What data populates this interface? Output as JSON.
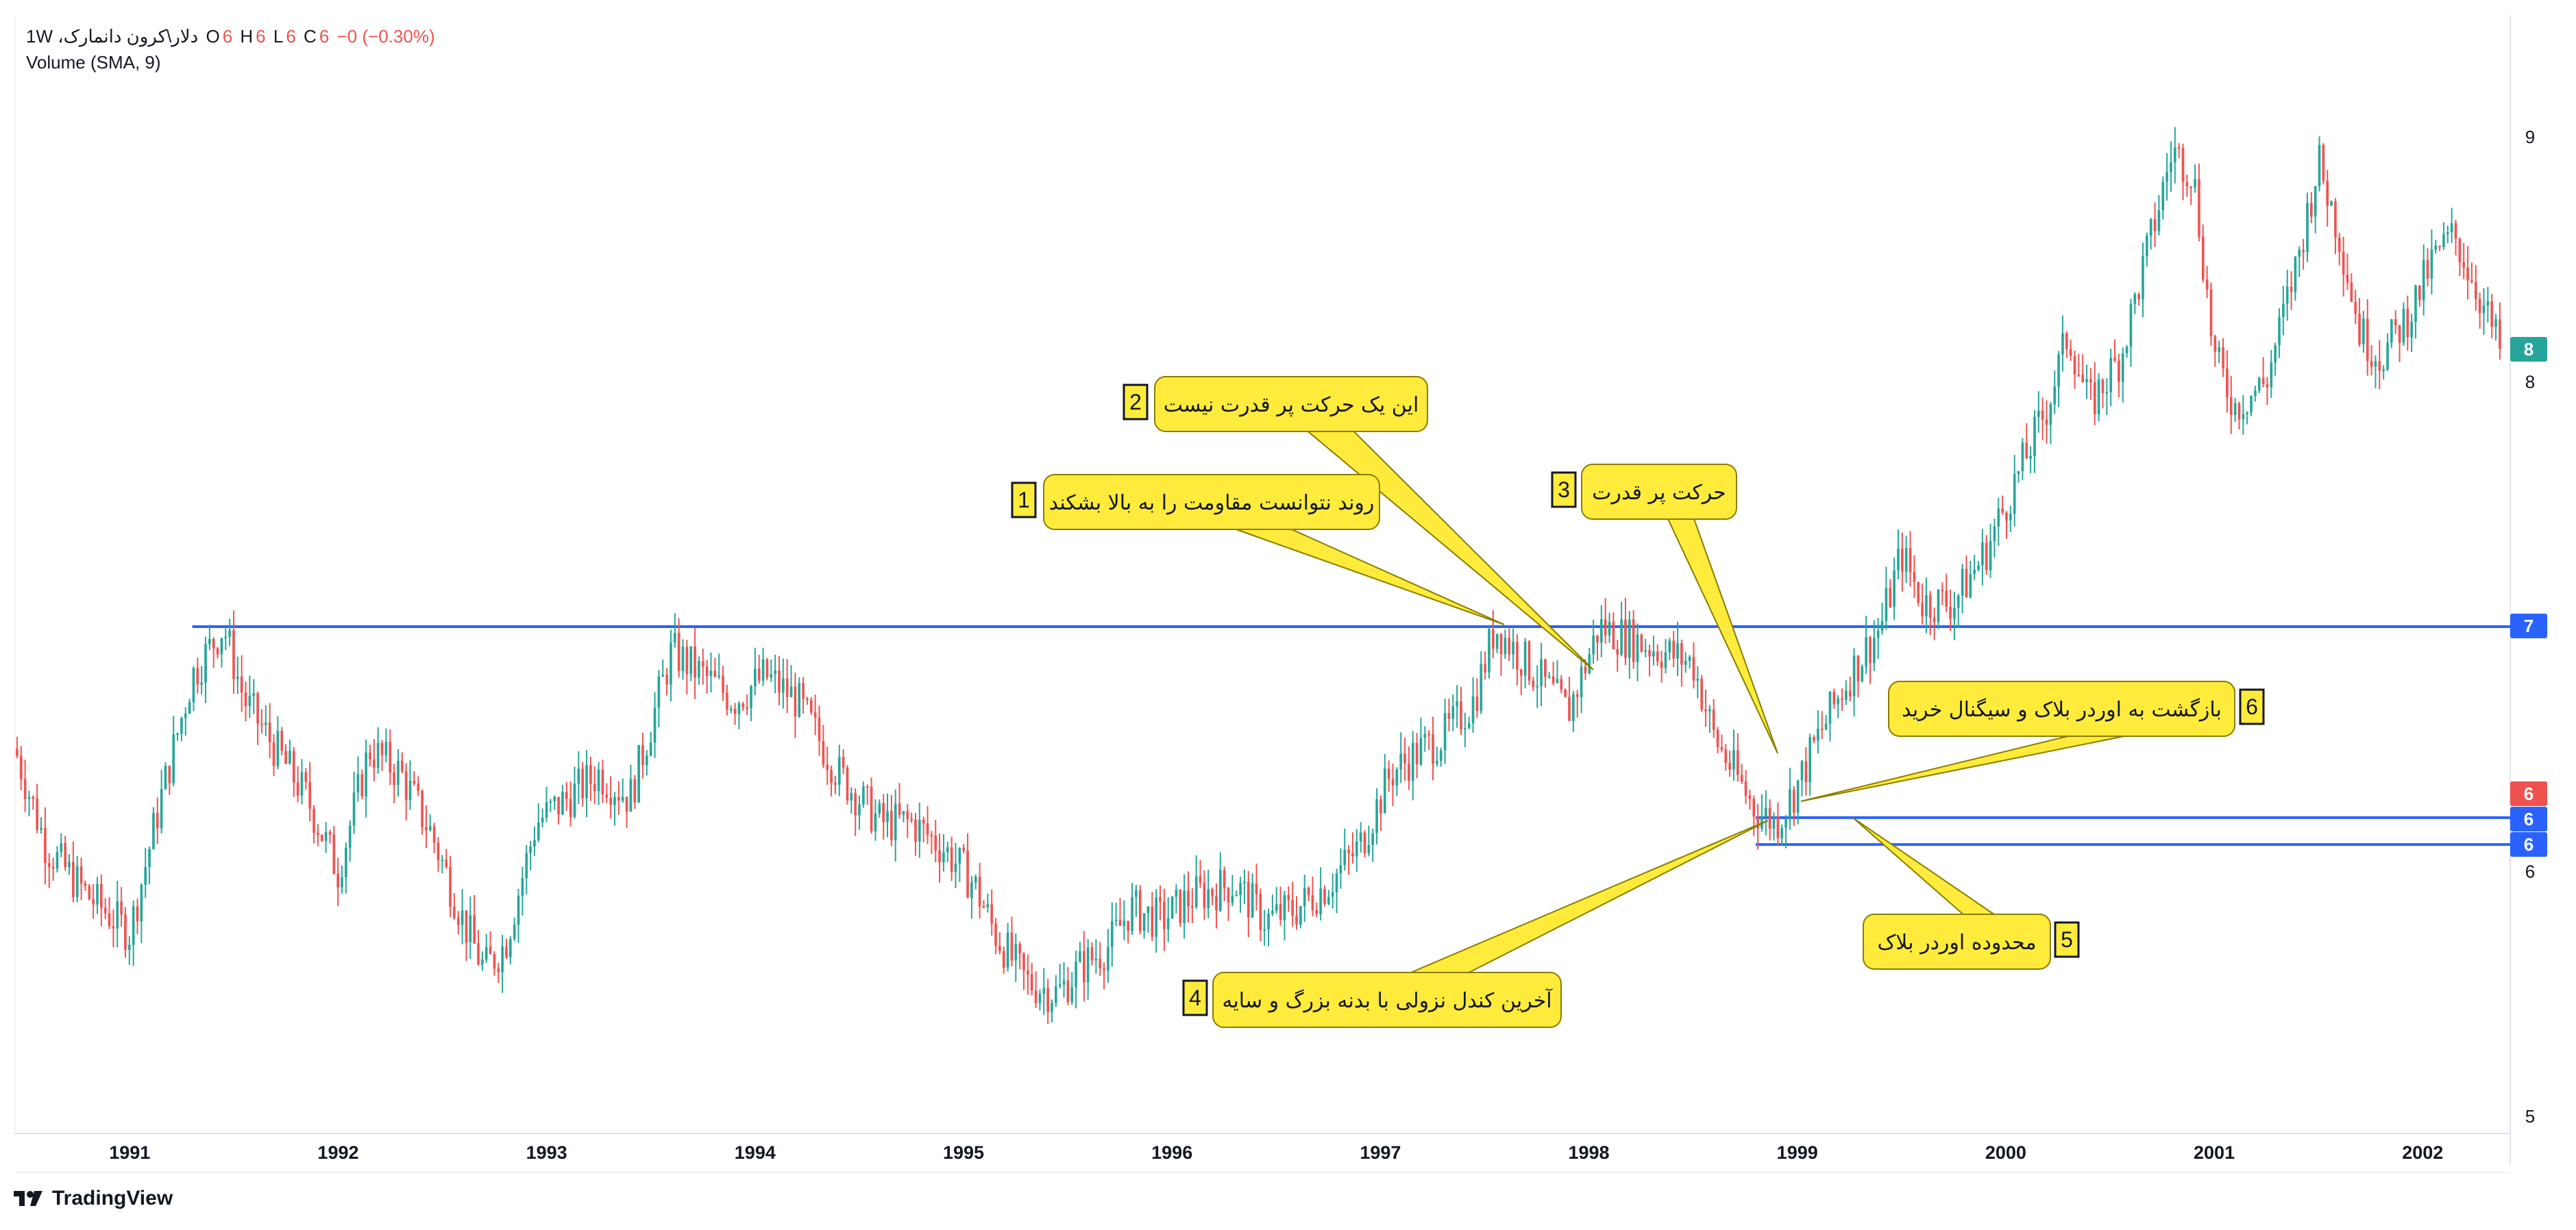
{
  "header": {
    "symbol": "دلار\\کرون دانمارک، 1W",
    "o_label": "O",
    "o_value": "6",
    "h_label": "H",
    "h_value": "6",
    "l_label": "L",
    "l_value": "6",
    "c_label": "C",
    "c_value": "6",
    "change": "−0 (−0.30%)",
    "indicator": "Volume (SMA, 9)"
  },
  "brand": {
    "name": "TradingView",
    "icon": "tradingview-logo-icon"
  },
  "colors": {
    "up": "#26a69a",
    "down": "#ef5350",
    "line": "#2962ff",
    "callout": "#ffeb3b",
    "current_tag": "#26a69a",
    "red_tag": "#ef5350"
  },
  "price_axis": {
    "ticks": [
      "9",
      "8",
      "7",
      "6",
      "5"
    ]
  },
  "time_axis": {
    "ticks": [
      "1991",
      "1992",
      "1993",
      "1994",
      "1995",
      "1996",
      "1997",
      "1998",
      "1999",
      "2000",
      "2001",
      "2002"
    ]
  },
  "price_tags": [
    {
      "label": "8",
      "value": 8.11,
      "color": "#26a69a"
    },
    {
      "label": "7",
      "value": 7.0,
      "color": "#2962ff"
    },
    {
      "label": "6",
      "value": 6.33,
      "color": "#ef5350"
    },
    {
      "label": "6",
      "value": 6.22,
      "color": "#2962ff"
    },
    {
      "label": "6",
      "value": 6.11,
      "color": "#2962ff"
    }
  ],
  "annotations": [
    {
      "num": "1",
      "text": "روند نتوانست مقاومت را به بالا بشکند"
    },
    {
      "num": "2",
      "text": "این یک حرکت پر قدرت نیست"
    },
    {
      "num": "3",
      "text": "حرکت پر قدرت"
    },
    {
      "num": "4",
      "text": "آخرین کندل نزولی با بدنه بزرگ و سایه"
    },
    {
      "num": "5",
      "text": "محدوده اوردر بلاک"
    },
    {
      "num": "6",
      "text": "بازگشت به اوردر بلاک و سیگنال خرید"
    }
  ],
  "chart_data": {
    "type": "line",
    "title": "",
    "xlabel": "",
    "ylabel": "",
    "xlim": [
      1990.45,
      2002.42
    ],
    "ylim": [
      5.0,
      9.0
    ],
    "horizontal_levels": [
      {
        "name": "resistance",
        "value": 7.0,
        "from_x": 1991.3
      },
      {
        "name": "order-block-top",
        "value": 6.22,
        "from_x": 1998.8
      },
      {
        "name": "order-block-bottom",
        "value": 6.11,
        "from_x": 1998.8
      }
    ],
    "series": [
      {
        "x": [
          1990.45,
          1990.6,
          1990.8,
          1991.0,
          1991.15,
          1991.3,
          1991.45,
          1991.55,
          1991.7,
          1991.85,
          1992.0,
          1992.15,
          1992.3,
          1992.45,
          1992.6,
          1992.7,
          1992.8,
          1992.95,
          1993.1,
          1993.25,
          1993.4,
          1993.5,
          1993.6,
          1993.75,
          1993.9,
          1994.05,
          1994.2,
          1994.4,
          1994.6,
          1994.75,
          1994.9,
          1995.05,
          1995.15,
          1995.3,
          1995.45,
          1995.55,
          1995.7,
          1995.8,
          1995.95,
          1996.1,
          1996.3,
          1996.45,
          1996.6,
          1996.75,
          1996.9,
          1997.05,
          1997.2,
          1997.3,
          1997.45,
          1997.55,
          1997.65,
          1997.8,
          1997.9,
          1998.05,
          1998.2,
          1998.35,
          1998.5,
          1998.6,
          1998.7,
          1998.8,
          1998.9,
          1999.0,
          1999.1,
          1999.25,
          1999.4,
          1999.5,
          1999.6,
          1999.75,
          1999.9,
          2000.05,
          2000.2,
          2000.3,
          2000.4,
          2000.55,
          2000.7,
          2000.8,
          2000.9,
          2001.0,
          2001.1,
          2001.25,
          2001.4,
          2001.5,
          2001.6,
          2001.7,
          2001.8,
          2001.95,
          2002.05,
          2002.15,
          2002.25,
          2002.38
        ],
        "y": [
          6.5,
          6.1,
          5.9,
          5.75,
          6.3,
          6.8,
          7.0,
          6.7,
          6.5,
          6.3,
          6.0,
          6.5,
          6.4,
          6.15,
          5.8,
          5.6,
          5.7,
          6.2,
          6.3,
          6.4,
          6.3,
          6.6,
          6.9,
          6.8,
          6.7,
          6.8,
          6.7,
          6.4,
          6.2,
          6.2,
          6.1,
          5.95,
          5.75,
          5.55,
          5.5,
          5.6,
          5.7,
          5.85,
          5.8,
          5.9,
          5.95,
          5.8,
          5.85,
          5.95,
          6.1,
          6.4,
          6.5,
          6.55,
          6.7,
          7.0,
          6.9,
          6.75,
          6.65,
          7.0,
          6.95,
          6.9,
          6.85,
          6.55,
          6.4,
          6.25,
          6.2,
          6.35,
          6.55,
          6.8,
          7.0,
          7.3,
          7.1,
          7.1,
          7.3,
          7.6,
          7.9,
          8.2,
          7.9,
          8.1,
          8.6,
          8.95,
          8.85,
          8.1,
          7.9,
          8.0,
          8.5,
          8.9,
          8.6,
          8.2,
          8.1,
          8.3,
          8.5,
          8.6,
          8.4,
          8.11
        ]
      }
    ]
  }
}
